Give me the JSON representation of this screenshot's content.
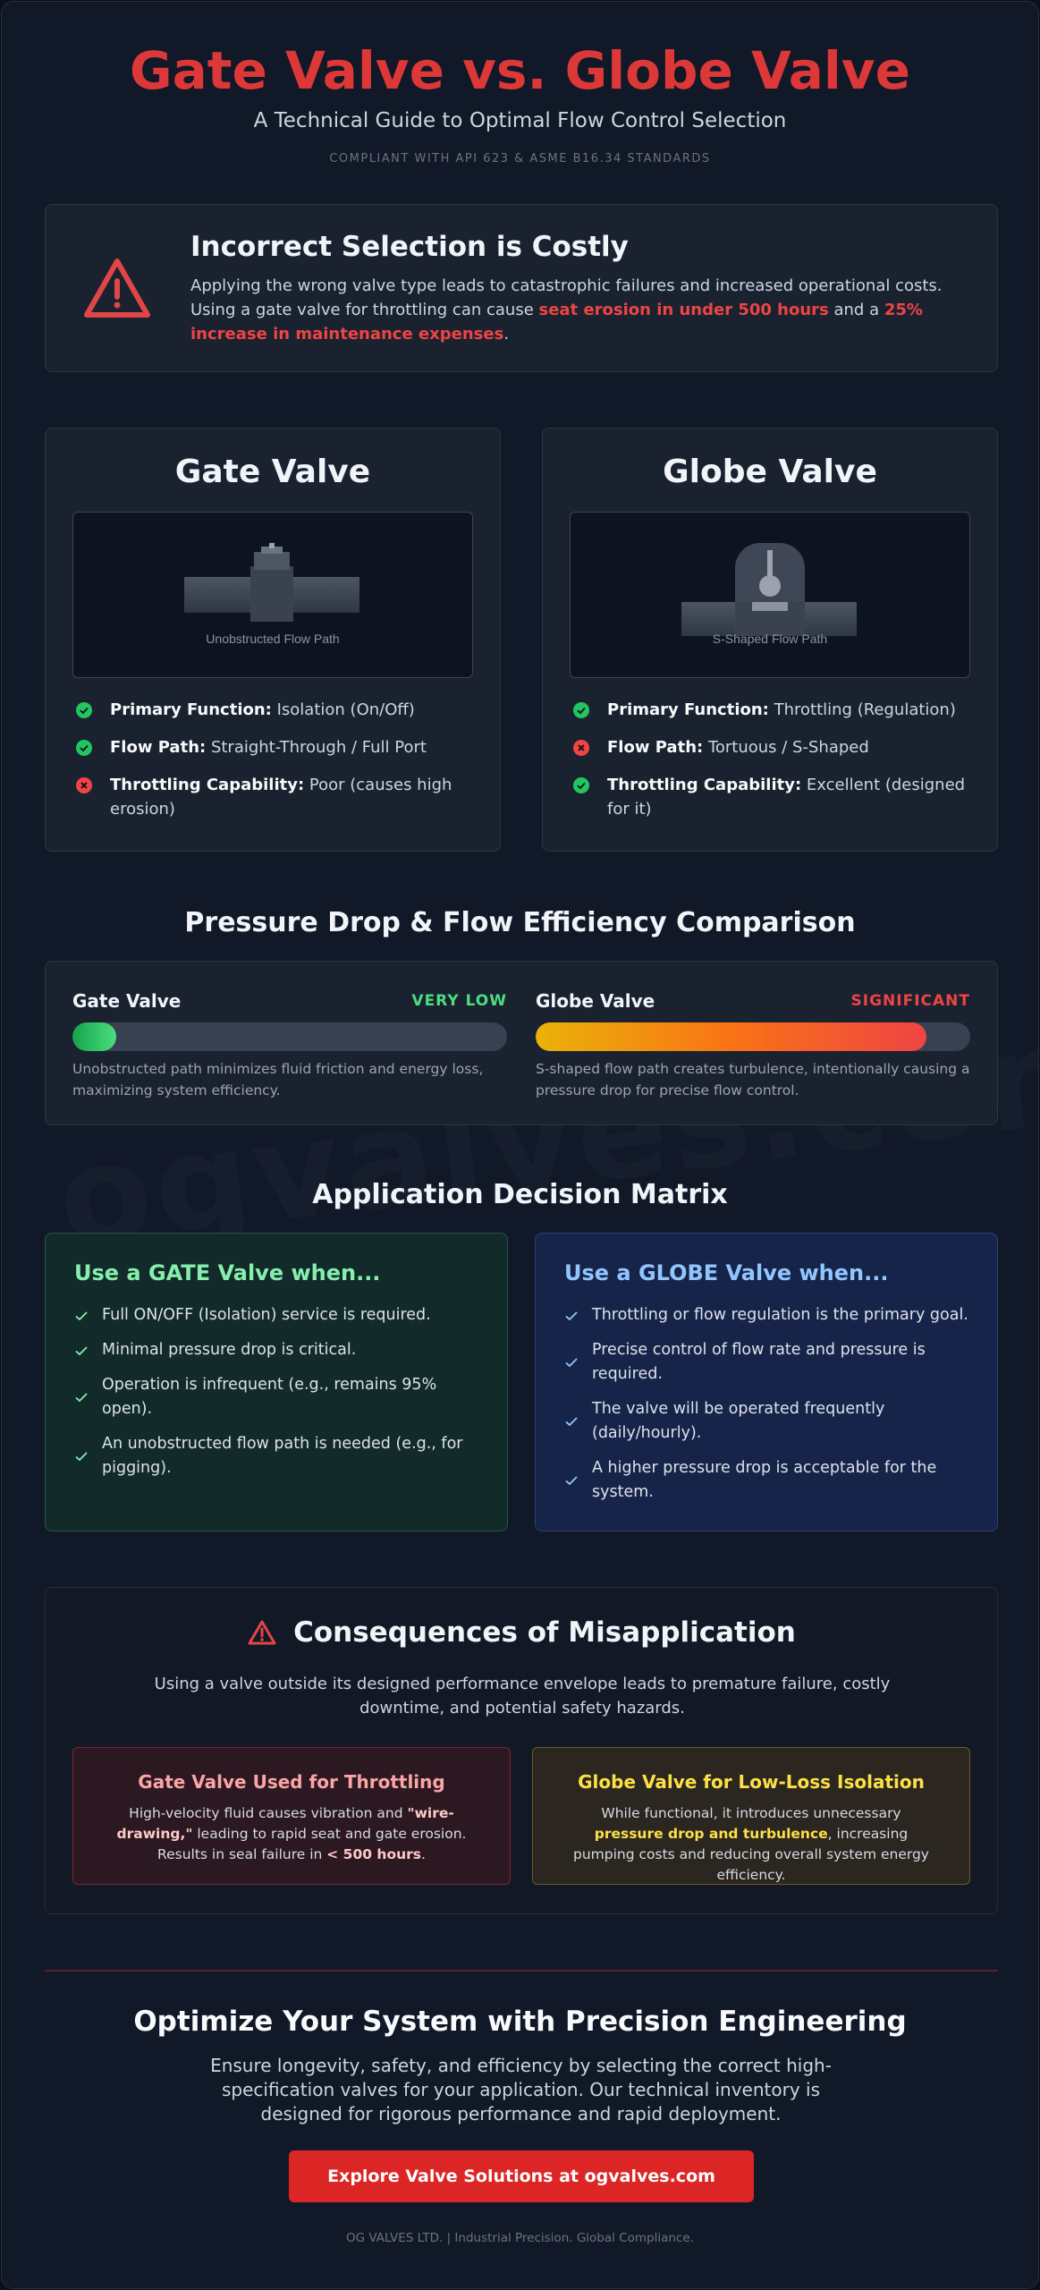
{
  "header": {
    "title": "Gate Valve vs. Globe Valve",
    "subtitle": "A Technical Guide to Optimal Flow Control Selection",
    "compliance": "COMPLIANT WITH API 623 & ASME B16.34 STANDARDS"
  },
  "alert": {
    "icon": "warning-triangle-icon",
    "title": "Incorrect Selection is Costly",
    "text_1": "Applying the wrong valve type leads to catastrophic failures and increased operational costs. Using a gate valve for throttling can cause ",
    "highlight_1": "seat erosion in under 500 hours",
    "text_2": " and a ",
    "highlight_2": "25% increase in maintenance expenses",
    "text_3": "."
  },
  "valves": {
    "gate": {
      "name": "Gate Valve",
      "caption": "Unobstructed Flow Path",
      "features": [
        {
          "label": "Primary Function:",
          "value": "Isolation (On/Off)",
          "status": "check"
        },
        {
          "label": "Flow Path:",
          "value": "Straight-Through / Full Port",
          "status": "check"
        },
        {
          "label": "Throttling Capability:",
          "value": "Poor (causes high erosion)",
          "status": "cross"
        }
      ]
    },
    "globe": {
      "name": "Globe Valve",
      "caption": "S-Shaped Flow Path",
      "features": [
        {
          "label": "Primary Function:",
          "value": "Throttling (Regulation)",
          "status": "check"
        },
        {
          "label": "Flow Path:",
          "value": "Tortuous / S-Shaped",
          "status": "cross"
        },
        {
          "label": "Throttling Capability:",
          "value": "Excellent (designed for it)",
          "status": "check"
        }
      ]
    }
  },
  "pressure": {
    "title": "Pressure Drop & Flow Efficiency Comparison",
    "gate": {
      "name": "Gate Valve",
      "status": "VERY LOW",
      "fill_percent": 10,
      "description": "Unobstructed path minimizes fluid friction and energy loss, maximizing system efficiency."
    },
    "globe": {
      "name": "Globe Valve",
      "status": "SIGNIFICANT",
      "fill_percent": 90,
      "description": "S-shaped flow path creates turbulence, intentionally causing a pressure drop for precise flow control."
    }
  },
  "matrix": {
    "title": "Application Decision Matrix",
    "gate": {
      "heading": "Use a GATE Valve when...",
      "items": [
        "Full ON/OFF (Isolation) service is required.",
        "Minimal pressure drop is critical.",
        "Operation is infrequent (e.g., remains 95% open).",
        "An unobstructed flow path is needed (e.g., for pigging)."
      ]
    },
    "globe": {
      "heading": "Use a GLOBE Valve when...",
      "items": [
        "Throttling or flow regulation is the primary goal.",
        "Precise control of flow rate and pressure is required.",
        "The valve will be operated frequently (daily/hourly).",
        "A higher pressure drop is acceptable for the system."
      ]
    }
  },
  "consequences": {
    "title": "Consequences of Misapplication",
    "intro": "Using a valve outside its designed performance envelope leads to premature failure, costly downtime, and potential safety hazards.",
    "gate": {
      "heading": "Gate Valve Used for Throttling",
      "text_1": "High-velocity fluid causes vibration and ",
      "highlight_1": "\"wire-drawing,\"",
      "text_2": " leading to rapid seat and gate erosion. Results in seal failure in ",
      "highlight_2": "< 500 hours",
      "text_3": "."
    },
    "globe": {
      "heading": "Globe Valve for Low-Loss Isolation",
      "text_1": "While functional, it introduces unnecessary ",
      "highlight_1": "pressure drop and turbulence",
      "text_2": ", increasing pumping costs and reducing overall system energy efficiency."
    }
  },
  "cta": {
    "title": "Optimize Your System with Precision Engineering",
    "text": "Ensure longevity, safety, and efficiency by selecting the correct high-specification valves for your application. Our technical inventory is designed for rigorous performance and rapid deployment.",
    "button": "Explore Valve Solutions at ogvalves.com"
  },
  "footer": "OG VALVES LTD. | Industrial Precision. Global Compliance.",
  "watermark": "ogvalves.com",
  "colors": {
    "accent_red": "#dc2626",
    "check_green": "#22c55e",
    "cross_red": "#ef4444",
    "gate_heading": "#86efac",
    "globe_heading": "#93c5fd"
  }
}
